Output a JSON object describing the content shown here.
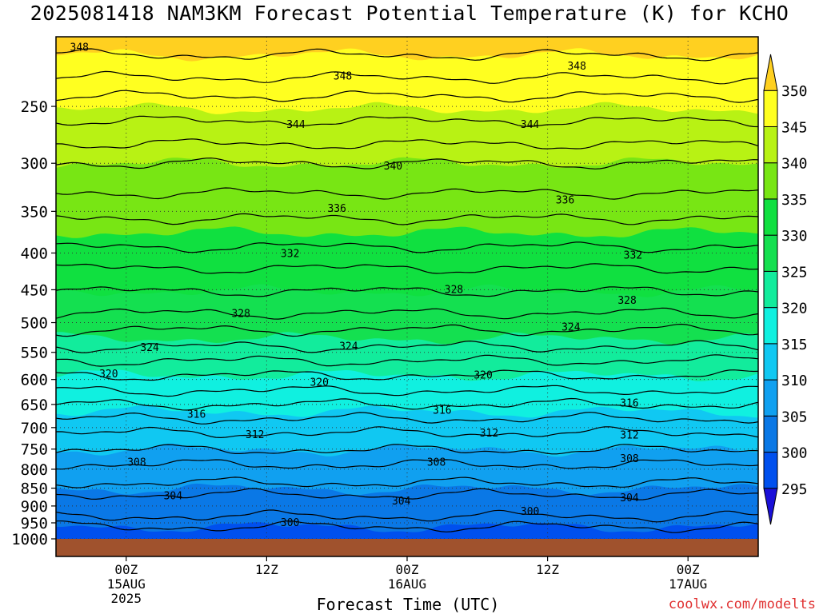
{
  "title": "2025081418 NAM3KM Forecast Potential Temperature (K) for KCHO",
  "credit": "coolwx.com/modelts",
  "colors": {
    "ground": "#a0522d",
    "contour_line": "#000000",
    "grid": "#333333"
  },
  "chart_data": {
    "type": "heatmap",
    "title": "2025081418 NAM3KM Forecast Potential Temperature (K) for KCHO",
    "xlabel": "Forecast Time (UTC)",
    "ylabel": "",
    "y_scale": "log-pressure",
    "y_reversed": true,
    "ylim": [
      1000,
      200
    ],
    "y_ticks": [
      250,
      300,
      350,
      400,
      450,
      500,
      550,
      600,
      650,
      700,
      750,
      800,
      850,
      900,
      950,
      1000
    ],
    "x_ticks": [
      {
        "hour": 6,
        "lines": [
          "00Z",
          "15AUG",
          "2025"
        ]
      },
      {
        "hour": 18,
        "lines": [
          "12Z"
        ]
      },
      {
        "hour": 30,
        "lines": [
          "00Z",
          "16AUG"
        ]
      },
      {
        "hour": 42,
        "lines": [
          "12Z"
        ]
      },
      {
        "hour": 54,
        "lines": [
          "00Z",
          "17AUG"
        ]
      }
    ],
    "xlim_hours": [
      0,
      60
    ],
    "grid": "dotted",
    "colorbar": {
      "placement": "right",
      "levels": [
        295,
        300,
        305,
        310,
        315,
        320,
        325,
        330,
        335,
        340,
        345,
        350
      ],
      "colors": [
        "#1a10d8",
        "#0050ee",
        "#0a78e6",
        "#10a0f0",
        "#10c8f2",
        "#10f0e0",
        "#12ec9c",
        "#14e050",
        "#10e040",
        "#78e614",
        "#b8f214",
        "#ffff20",
        "#ffd020"
      ]
    },
    "contour_interval": 2,
    "contours": [
      {
        "theta": 300,
        "pressure": 962
      },
      {
        "theta": 302,
        "pressure": 930
      },
      {
        "theta": 304,
        "pressure": 868
      },
      {
        "theta": 306,
        "pressure": 836
      },
      {
        "theta": 308,
        "pressure": 788
      },
      {
        "theta": 310,
        "pressure": 752
      },
      {
        "theta": 312,
        "pressure": 712
      },
      {
        "theta": 314,
        "pressure": 680
      },
      {
        "theta": 316,
        "pressure": 650
      },
      {
        "theta": 318,
        "pressure": 622
      },
      {
        "theta": 320,
        "pressure": 592
      },
      {
        "theta": 322,
        "pressure": 565
      },
      {
        "theta": 324,
        "pressure": 540
      },
      {
        "theta": 326,
        "pressure": 512
      },
      {
        "theta": 328,
        "pressure": 485
      },
      {
        "theta": 330,
        "pressure": 452
      },
      {
        "theta": 332,
        "pressure": 420
      },
      {
        "theta": 334,
        "pressure": 392
      },
      {
        "theta": 336,
        "pressure": 358
      },
      {
        "theta": 338,
        "pressure": 330
      },
      {
        "theta": 340,
        "pressure": 300
      },
      {
        "theta": 342,
        "pressure": 282
      },
      {
        "theta": 344,
        "pressure": 262
      },
      {
        "theta": 346,
        "pressure": 242
      },
      {
        "theta": 348,
        "pressure": 228
      },
      {
        "theta": 350,
        "pressure": 212
      }
    ],
    "contour_labels": [
      {
        "text": "348",
        "hour": 2,
        "pressure": 207
      },
      {
        "text": "348",
        "hour": 24.5,
        "pressure": 227
      },
      {
        "text": "348",
        "hour": 44.5,
        "pressure": 220
      },
      {
        "text": "344",
        "hour": 20.5,
        "pressure": 265
      },
      {
        "text": "344",
        "hour": 40.5,
        "pressure": 265
      },
      {
        "text": "340",
        "hour": 28.8,
        "pressure": 303
      },
      {
        "text": "336",
        "hour": 24,
        "pressure": 347
      },
      {
        "text": "336",
        "hour": 43.5,
        "pressure": 338
      },
      {
        "text": "332",
        "hour": 20,
        "pressure": 401
      },
      {
        "text": "332",
        "hour": 49.3,
        "pressure": 403
      },
      {
        "text": "328",
        "hour": 15.8,
        "pressure": 486
      },
      {
        "text": "328",
        "hour": 34,
        "pressure": 450
      },
      {
        "text": "328",
        "hour": 48.8,
        "pressure": 466
      },
      {
        "text": "324",
        "hour": 8,
        "pressure": 542
      },
      {
        "text": "324",
        "hour": 25,
        "pressure": 540
      },
      {
        "text": "324",
        "hour": 44,
        "pressure": 508
      },
      {
        "text": "320",
        "hour": 4.5,
        "pressure": 590
      },
      {
        "text": "320",
        "hour": 22.5,
        "pressure": 606
      },
      {
        "text": "320",
        "hour": 36.5,
        "pressure": 592
      },
      {
        "text": "316",
        "hour": 12,
        "pressure": 671
      },
      {
        "text": "316",
        "hour": 33,
        "pressure": 663
      },
      {
        "text": "316",
        "hour": 49,
        "pressure": 648
      },
      {
        "text": "312",
        "hour": 17,
        "pressure": 717
      },
      {
        "text": "312",
        "hour": 37,
        "pressure": 713
      },
      {
        "text": "312",
        "hour": 49,
        "pressure": 718
      },
      {
        "text": "308",
        "hour": 6.9,
        "pressure": 783
      },
      {
        "text": "308",
        "hour": 32.5,
        "pressure": 783
      },
      {
        "text": "308",
        "hour": 49,
        "pressure": 774
      },
      {
        "text": "304",
        "hour": 10,
        "pressure": 872
      },
      {
        "text": "304",
        "hour": 29.5,
        "pressure": 887
      },
      {
        "text": "304",
        "hour": 49,
        "pressure": 877
      },
      {
        "text": "300",
        "hour": 20,
        "pressure": 950
      },
      {
        "text": "300",
        "hour": 40.5,
        "pressure": 917
      }
    ]
  }
}
